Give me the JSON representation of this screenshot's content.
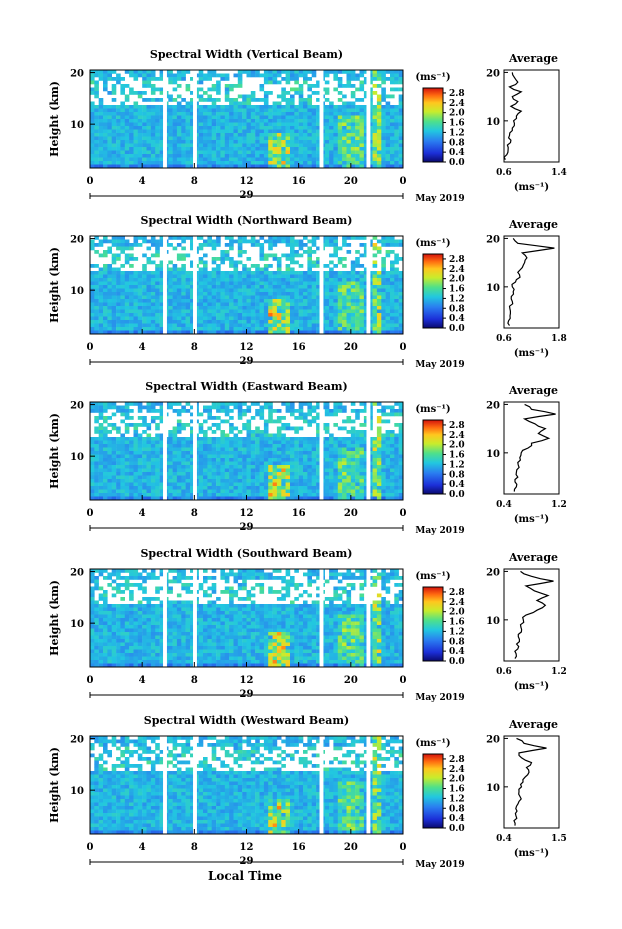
{
  "figure": {
    "xlabel": "Local Time",
    "colorbar_unit": "(ms⁻¹)",
    "average_title": "Average",
    "average_unit": "(ms⁻¹)",
    "height_label": "Height (km)",
    "date_label": "May 2019",
    "day_label": "29"
  },
  "chart_data": [
    {
      "type": "heatmap",
      "title": "Spectral Width (Vertical Beam)",
      "x_ticks": [
        "0",
        "4",
        "8",
        "12",
        "16",
        "20",
        "0"
      ],
      "x_range": [
        0,
        24
      ],
      "y_ticks": [
        "10",
        "20"
      ],
      "y_range": [
        1.5,
        20.5
      ],
      "colorbar_ticks": [
        "0.0",
        "0.4",
        "0.8",
        "1.2",
        "1.6",
        "2.0",
        "2.4",
        "2.8"
      ],
      "colorbar_range": [
        0,
        3
      ],
      "gaps_hours": [
        [
          5.6,
          5.9
        ],
        [
          7.9,
          8.2
        ],
        [
          17.6,
          17.9
        ],
        [
          21.2,
          21.5
        ]
      ],
      "average": {
        "x_ticks": [
          "0.6",
          "1.4"
        ],
        "x_range": [
          0.6,
          1.4
        ],
        "height": [
          2,
          3,
          4,
          5,
          6,
          7,
          8,
          9,
          10,
          11,
          12,
          13,
          14,
          15,
          16,
          17,
          18,
          19,
          20
        ],
        "width": [
          0.62,
          0.64,
          0.66,
          0.65,
          0.7,
          0.68,
          0.72,
          0.75,
          0.74,
          0.78,
          0.85,
          0.7,
          0.8,
          0.72,
          0.85,
          0.68,
          0.8,
          0.75,
          0.72
        ]
      }
    },
    {
      "type": "heatmap",
      "title": "Spectral Width (Northward Beam)",
      "x_ticks": [
        "0",
        "4",
        "8",
        "12",
        "16",
        "20",
        "0"
      ],
      "x_range": [
        0,
        24
      ],
      "y_ticks": [
        "10",
        "20"
      ],
      "y_range": [
        1.5,
        20.5
      ],
      "colorbar_ticks": [
        "0.0",
        "0.4",
        "0.8",
        "1.2",
        "1.6",
        "2.0",
        "2.4",
        "2.8"
      ],
      "colorbar_range": [
        0,
        3
      ],
      "gaps_hours": [
        [
          5.6,
          5.9
        ],
        [
          7.9,
          8.2
        ],
        [
          17.6,
          17.9
        ],
        [
          21.2,
          21.5
        ]
      ],
      "average": {
        "x_ticks": [
          "0.6",
          "1.8"
        ],
        "x_range": [
          0.6,
          1.8
        ],
        "height": [
          2,
          3,
          4,
          5,
          6,
          7,
          8,
          9,
          10,
          11,
          12,
          13,
          14,
          15,
          16,
          17,
          18,
          19,
          20
        ],
        "width": [
          0.72,
          0.7,
          0.73,
          0.74,
          0.72,
          0.78,
          0.76,
          0.8,
          0.78,
          0.85,
          0.95,
          0.9,
          1.0,
          1.05,
          1.1,
          1.0,
          1.7,
          0.9,
          0.8
        ]
      }
    },
    {
      "type": "heatmap",
      "title": "Spectral Width (Eastward Beam)",
      "x_ticks": [
        "0",
        "4",
        "8",
        "12",
        "16",
        "20",
        "0"
      ],
      "x_range": [
        0,
        24
      ],
      "y_ticks": [
        "10",
        "20"
      ],
      "y_range": [
        1.5,
        20.5
      ],
      "colorbar_ticks": [
        "0.0",
        "0.4",
        "0.8",
        "1.2",
        "1.6",
        "2.0",
        "2.4",
        "2.8"
      ],
      "colorbar_range": [
        0,
        3
      ],
      "gaps_hours": [
        [
          5.6,
          5.9
        ],
        [
          7.9,
          8.2
        ],
        [
          17.6,
          17.9
        ],
        [
          21.2,
          21.5
        ]
      ],
      "average": {
        "x_ticks": [
          "0.4",
          "1.2"
        ],
        "x_range": [
          0.4,
          1.2
        ],
        "height": [
          2,
          3,
          4,
          5,
          6,
          7,
          8,
          9,
          10,
          11,
          12,
          13,
          14,
          15,
          16,
          17,
          18,
          19,
          20
        ],
        "width": [
          0.55,
          0.58,
          0.56,
          0.6,
          0.58,
          0.62,
          0.6,
          0.63,
          0.65,
          0.75,
          0.8,
          1.05,
          0.9,
          1.0,
          0.85,
          0.7,
          1.15,
          0.8,
          0.7
        ]
      }
    },
    {
      "type": "heatmap",
      "title": "Spectral Width (Southward Beam)",
      "x_ticks": [
        "0",
        "4",
        "8",
        "12",
        "16",
        "20",
        "0"
      ],
      "x_range": [
        0,
        24
      ],
      "y_ticks": [
        "10",
        "20"
      ],
      "y_range": [
        1.5,
        20.5
      ],
      "colorbar_ticks": [
        "0.0",
        "0.4",
        "0.8",
        "1.2",
        "1.6",
        "2.0",
        "2.4",
        "2.8"
      ],
      "colorbar_range": [
        0,
        3
      ],
      "gaps_hours": [
        [
          5.6,
          5.9
        ],
        [
          7.9,
          8.2
        ],
        [
          17.6,
          17.9
        ],
        [
          21.2,
          21.5
        ]
      ],
      "average": {
        "x_ticks": [
          "0.6",
          "1.2"
        ],
        "x_range": [
          0.4,
          1.4
        ],
        "height": [
          2,
          3,
          4,
          5,
          6,
          7,
          8,
          9,
          10,
          11,
          12,
          13,
          14,
          15,
          16,
          17,
          18,
          19,
          20
        ],
        "width": [
          0.6,
          0.62,
          0.65,
          0.63,
          0.68,
          0.66,
          0.72,
          0.7,
          0.75,
          0.8,
          1.0,
          1.15,
          1.0,
          1.2,
          0.95,
          0.8,
          1.3,
          0.9,
          0.7
        ]
      }
    },
    {
      "type": "heatmap",
      "title": "Spectral Width (Westward Beam)",
      "x_ticks": [
        "0",
        "4",
        "8",
        "12",
        "16",
        "20",
        "0"
      ],
      "x_range": [
        0,
        24
      ],
      "y_ticks": [
        "10",
        "20"
      ],
      "y_range": [
        1.5,
        20.5
      ],
      "colorbar_ticks": [
        "0.0",
        "0.4",
        "0.8",
        "1.2",
        "1.6",
        "2.0",
        "2.4",
        "2.8"
      ],
      "colorbar_range": [
        0,
        3
      ],
      "gaps_hours": [
        [
          5.6,
          5.9
        ],
        [
          7.9,
          8.2
        ],
        [
          17.6,
          17.9
        ],
        [
          21.2,
          21.5
        ]
      ],
      "average": {
        "x_ticks": [
          "0.4",
          "1.5"
        ],
        "x_range": [
          0.4,
          1.5
        ],
        "height": [
          2,
          3,
          4,
          5,
          6,
          7,
          8,
          9,
          10,
          11,
          12,
          13,
          14,
          15,
          16,
          17,
          18,
          19,
          20
        ],
        "width": [
          0.62,
          0.6,
          0.64,
          0.66,
          0.65,
          0.7,
          0.72,
          0.7,
          0.75,
          0.78,
          0.82,
          0.9,
          0.85,
          0.95,
          0.75,
          0.7,
          1.25,
          0.8,
          0.65
        ]
      }
    }
  ]
}
